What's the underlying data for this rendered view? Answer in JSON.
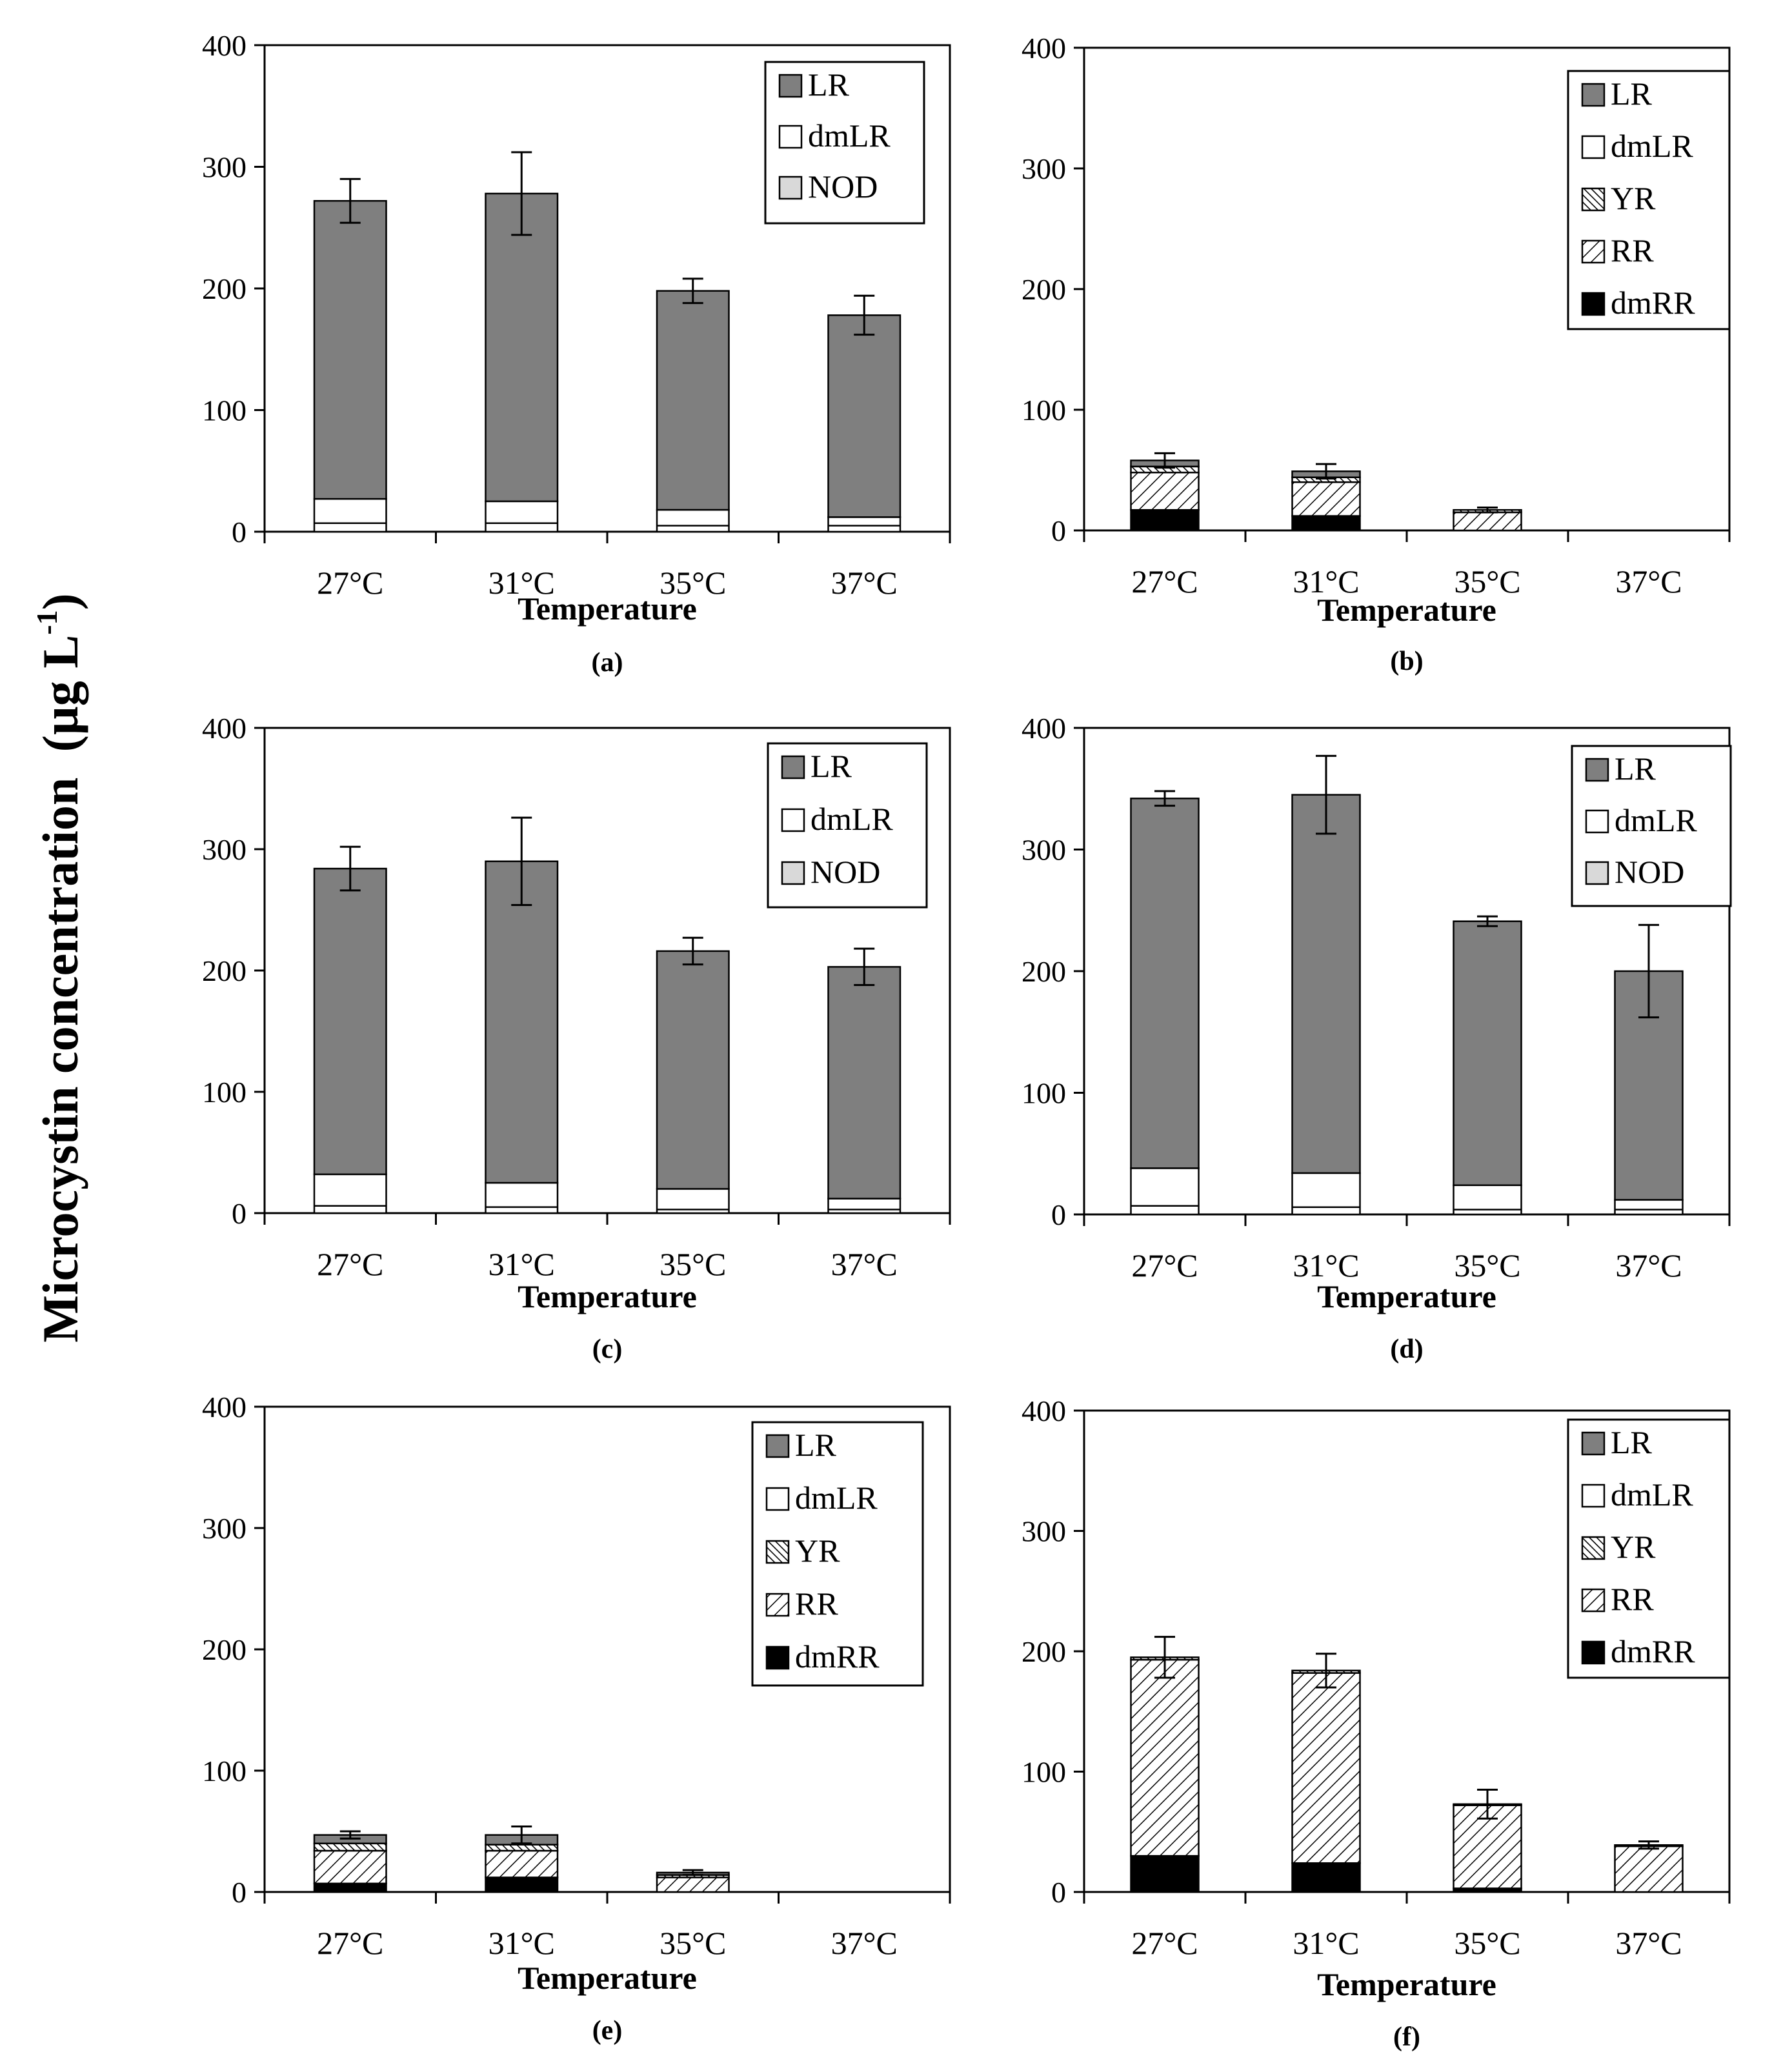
{
  "figure": {
    "y_axis_label": "Microcystin concentration",
    "y_axis_unit_main": "(µg L",
    "y_axis_unit_exp": "-1",
    "y_axis_unit_close": ")"
  },
  "patterns": {
    "LR": "#7f7f7f",
    "dmLR": "#ffffff",
    "NOD": "#d9d9d9",
    "YR": "dense-diagonal-hatch",
    "RR": "diagonal-hatch",
    "dmRR": "#000000"
  },
  "chart_data": [
    {
      "type": "bar",
      "panel": "(a)",
      "xlabel": "Temperature",
      "ylim": [
        0,
        400
      ],
      "yticks": [
        "0",
        "100",
        "200",
        "300",
        "400"
      ],
      "categories": [
        "27°C",
        "31°C",
        "35°C",
        "37°C"
      ],
      "legend": [
        "LR",
        "dmLR",
        "NOD"
      ],
      "series": [
        {
          "name": "NOD",
          "values": [
            0,
            0,
            0,
            0
          ]
        },
        {
          "name": "dmLR",
          "values": [
            27,
            25,
            18,
            12
          ]
        },
        {
          "name": "LR",
          "values": [
            245,
            253,
            180,
            166
          ]
        }
      ],
      "inner_marks": [
        7,
        7,
        5,
        5
      ],
      "totals": [
        272,
        278,
        198,
        178
      ],
      "errors": [
        18,
        34,
        10,
        16
      ]
    },
    {
      "type": "bar",
      "panel": "(b)",
      "xlabel": "Temperature",
      "ylim": [
        0,
        400
      ],
      "yticks": [
        "0",
        "100",
        "200",
        "300",
        "400"
      ],
      "categories": [
        "27°C",
        "31°C",
        "35°C",
        "37°C"
      ],
      "legend": [
        "LR",
        "dmLR",
        "YR",
        "RR",
        "dmRR"
      ],
      "series": [
        {
          "name": "dmRR",
          "values": [
            17,
            12,
            0,
            0
          ]
        },
        {
          "name": "RR",
          "values": [
            31,
            28,
            15,
            0
          ]
        },
        {
          "name": "YR",
          "values": [
            5,
            4,
            2,
            0
          ]
        },
        {
          "name": "dmLR",
          "values": [
            0,
            0,
            0,
            0
          ]
        },
        {
          "name": "LR",
          "values": [
            5,
            5,
            0,
            0
          ]
        }
      ],
      "totals": [
        58,
        49,
        17,
        0
      ],
      "errors": [
        6,
        6,
        2,
        0
      ]
    },
    {
      "type": "bar",
      "panel": "(c)",
      "xlabel": "Temperature",
      "ylim": [
        0,
        400
      ],
      "yticks": [
        "0",
        "100",
        "200",
        "300",
        "400"
      ],
      "categories": [
        "27°C",
        "31°C",
        "35°C",
        "37°C"
      ],
      "legend": [
        "LR",
        "dmLR",
        "NOD"
      ],
      "series": [
        {
          "name": "NOD",
          "values": [
            0,
            0,
            0,
            0
          ]
        },
        {
          "name": "dmLR",
          "values": [
            32,
            25,
            20,
            12
          ]
        },
        {
          "name": "LR",
          "values": [
            252,
            265,
            196,
            191
          ]
        }
      ],
      "inner_marks": [
        6,
        5,
        3,
        3
      ],
      "totals": [
        284,
        290,
        216,
        203
      ],
      "errors": [
        18,
        36,
        11,
        15
      ]
    },
    {
      "type": "bar",
      "panel": "(d)",
      "xlabel": "Temperature",
      "ylim": [
        0,
        400
      ],
      "yticks": [
        "0",
        "100",
        "200",
        "300",
        "400"
      ],
      "categories": [
        "27°C",
        "31°C",
        "35°C",
        "37°C"
      ],
      "legend": [
        "LR",
        "dmLR",
        "NOD"
      ],
      "series": [
        {
          "name": "NOD",
          "values": [
            0,
            0,
            0,
            0
          ]
        },
        {
          "name": "dmLR",
          "values": [
            38,
            34,
            24,
            12
          ]
        },
        {
          "name": "LR",
          "values": [
            304,
            311,
            217,
            188
          ]
        }
      ],
      "inner_marks": [
        7,
        6,
        4,
        4
      ],
      "totals": [
        342,
        345,
        241,
        200
      ],
      "errors": [
        6,
        32,
        4,
        38
      ]
    },
    {
      "type": "bar",
      "panel": "(e)",
      "xlabel": "Temperature",
      "ylim": [
        0,
        400
      ],
      "yticks": [
        "0",
        "100",
        "200",
        "300",
        "400"
      ],
      "categories": [
        "27°C",
        "31°C",
        "35°C",
        "37°C"
      ],
      "legend": [
        "LR",
        "dmLR",
        "YR",
        "RR",
        "dmRR"
      ],
      "series": [
        {
          "name": "dmRR",
          "values": [
            7,
            12,
            0,
            0
          ]
        },
        {
          "name": "RR",
          "values": [
            27,
            22,
            12,
            0
          ]
        },
        {
          "name": "YR",
          "values": [
            6,
            5,
            2,
            0
          ]
        },
        {
          "name": "dmLR",
          "values": [
            0,
            0,
            0,
            0
          ]
        },
        {
          "name": "LR",
          "values": [
            7,
            8,
            2,
            0
          ]
        }
      ],
      "totals": [
        47,
        47,
        16,
        0
      ],
      "errors": [
        3,
        7,
        2,
        0
      ]
    },
    {
      "type": "bar",
      "panel": "(f)",
      "xlabel": "Temperature",
      "ylim": [
        0,
        400
      ],
      "yticks": [
        "0",
        "100",
        "200",
        "300",
        "400"
      ],
      "categories": [
        "27°C",
        "31°C",
        "35°C",
        "37°C"
      ],
      "legend": [
        "LR",
        "dmLR",
        "YR",
        "RR",
        "dmRR"
      ],
      "series": [
        {
          "name": "dmRR",
          "values": [
            30,
            24,
            3,
            0
          ]
        },
        {
          "name": "RR",
          "values": [
            163,
            158,
            69,
            38
          ]
        },
        {
          "name": "YR",
          "values": [
            2,
            2,
            1,
            1
          ]
        },
        {
          "name": "dmLR",
          "values": [
            0,
            0,
            0,
            0
          ]
        },
        {
          "name": "LR",
          "values": [
            0,
            0,
            0,
            0
          ]
        }
      ],
      "totals": [
        195,
        184,
        73,
        39
      ],
      "errors": [
        17,
        14,
        12,
        3
      ]
    }
  ]
}
